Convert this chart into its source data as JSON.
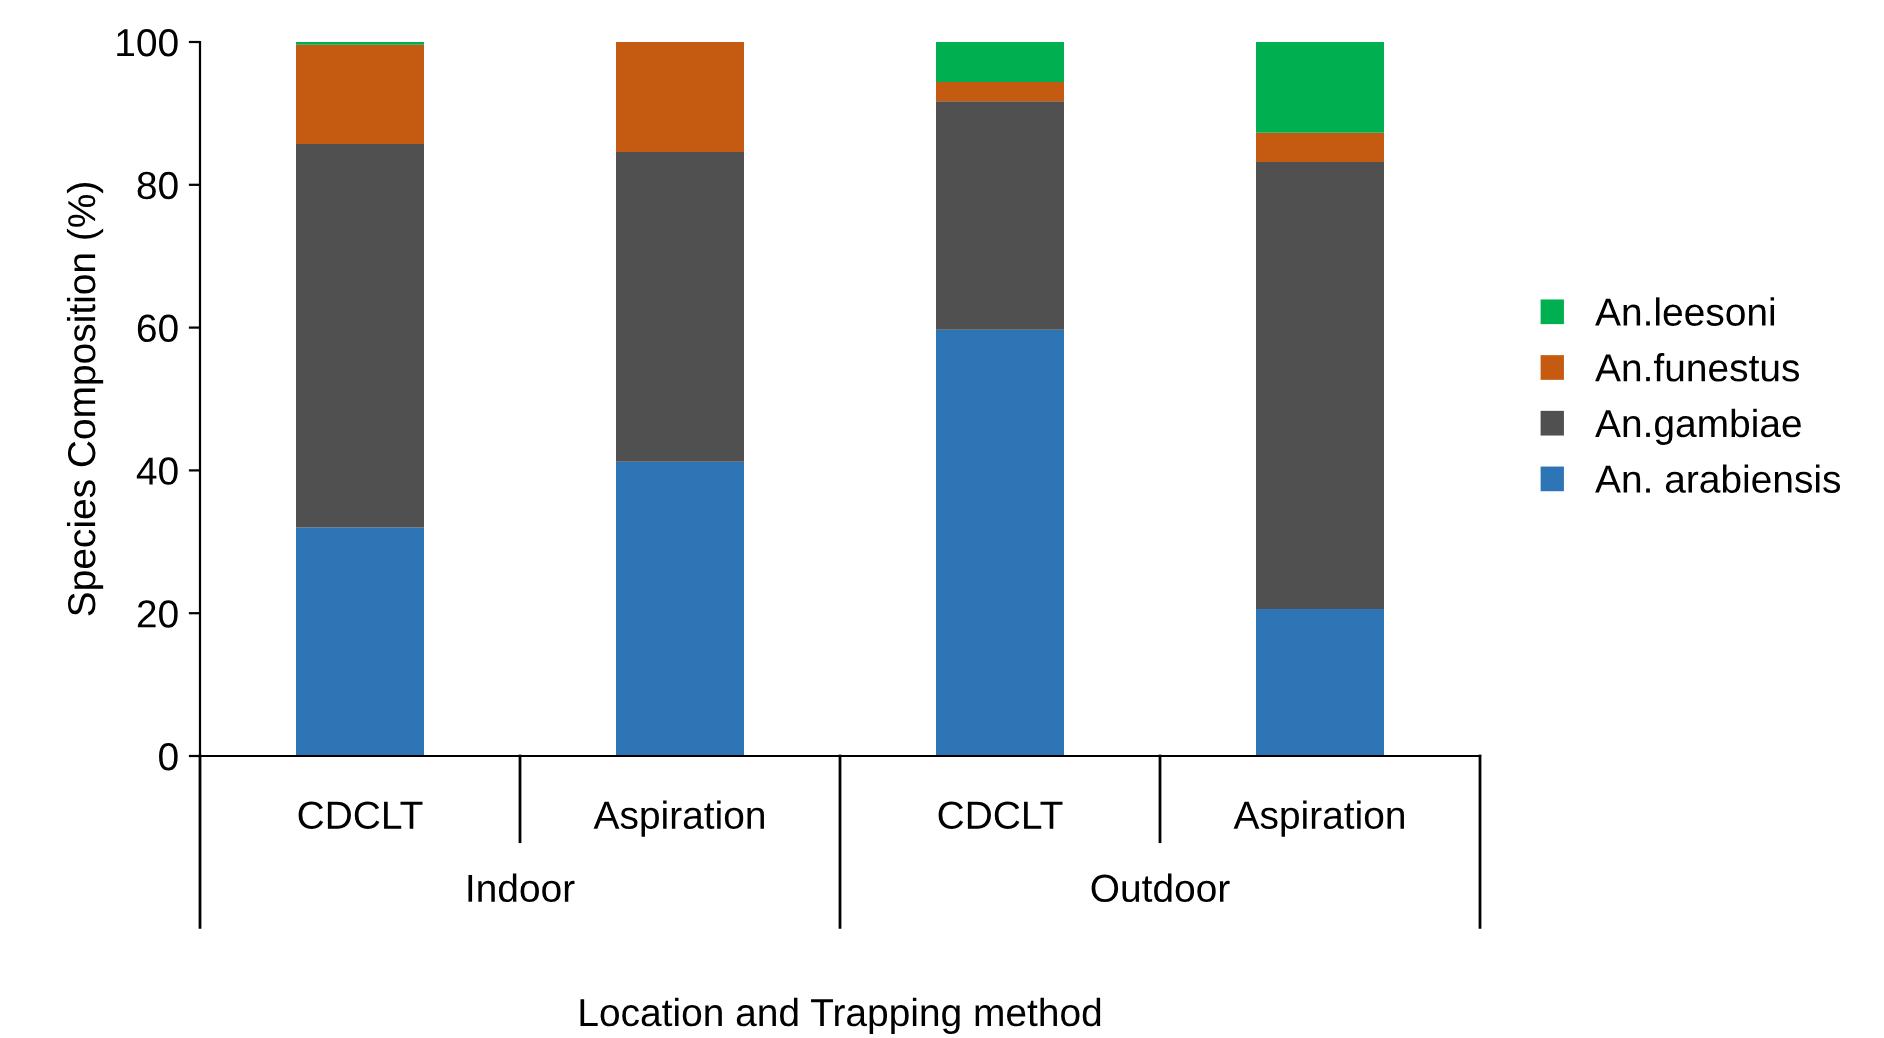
{
  "chart_data": {
    "type": "bar",
    "stacked": true,
    "xlabel": "Location and Trapping method",
    "ylabel": "Species Composition (%)",
    "categories": [
      "CDCLT",
      "Aspiration",
      "CDCLT",
      "Aspiration"
    ],
    "annotations": [
      "Indoor",
      "Outdoor"
    ],
    "series": [
      {
        "name": "An. arabiensis",
        "color": "#2e75b6",
        "values": [
          32,
          41.2,
          59.7,
          20.6
        ]
      },
      {
        "name": "An.gambiae",
        "color": "#505050",
        "values": [
          53.7,
          43.4,
          32.0,
          62.6
        ]
      },
      {
        "name": "An.funestus",
        "color": "#c55a11",
        "values": [
          13.9,
          15.4,
          2.7,
          4.1
        ]
      },
      {
        "name": "An.leesoni",
        "color": "#00b050",
        "values": [
          0.4,
          null,
          5.6,
          12.7
        ]
      }
    ],
    "ylim": [
      0,
      100
    ],
    "yticks": [
      0,
      20,
      40,
      60,
      80,
      100
    ],
    "grid": false,
    "legend": "right"
  }
}
